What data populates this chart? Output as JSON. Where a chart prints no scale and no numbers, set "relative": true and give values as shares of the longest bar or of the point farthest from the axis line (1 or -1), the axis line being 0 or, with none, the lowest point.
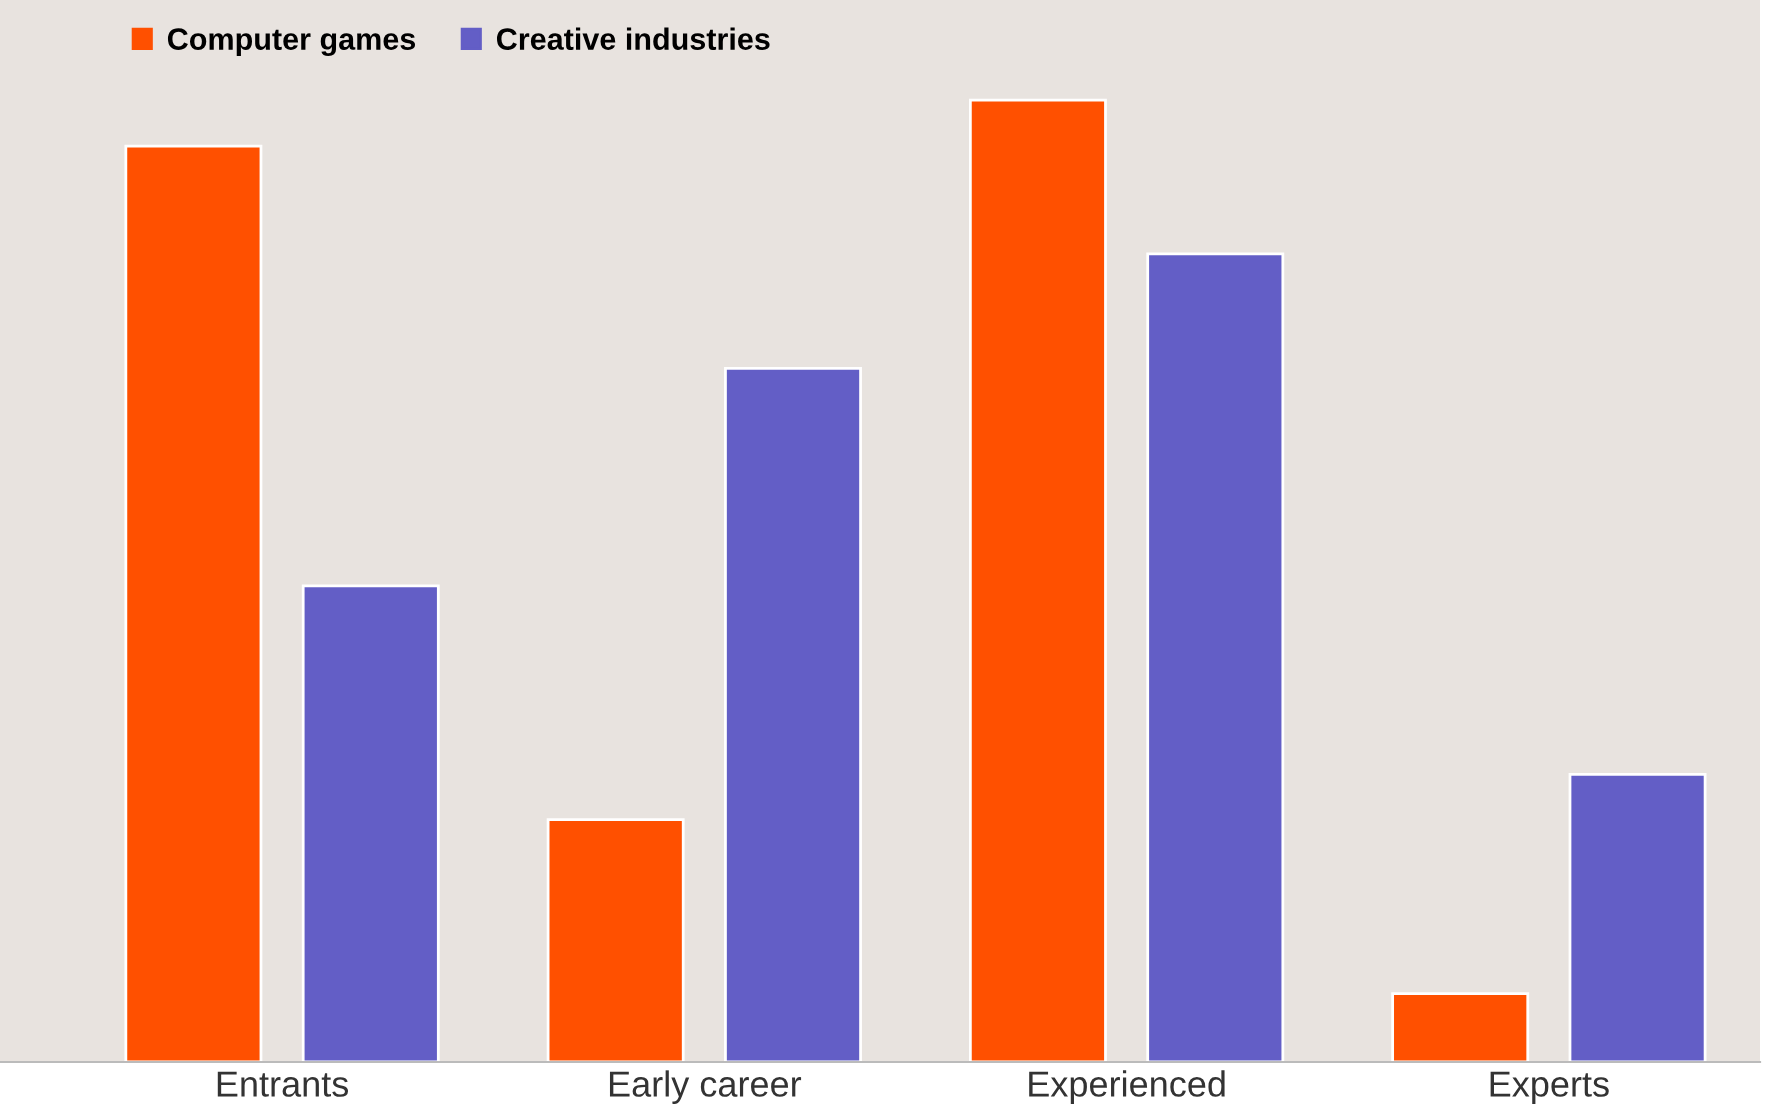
{
  "chart_data": {
    "type": "bar",
    "relative": true,
    "categories": [
      "Entrants",
      "Early career",
      "Experienced",
      "Experts"
    ],
    "series": [
      {
        "name": "Computer games",
        "color": "#ff5000",
        "values": [
          0.952,
          0.252,
          1,
          0.071
        ]
      },
      {
        "name": "Creative industries",
        "color": "#635ec6",
        "values": [
          0.495,
          0.721,
          0.84,
          0.299
        ]
      }
    ],
    "legend": "top left",
    "grid": false
  }
}
